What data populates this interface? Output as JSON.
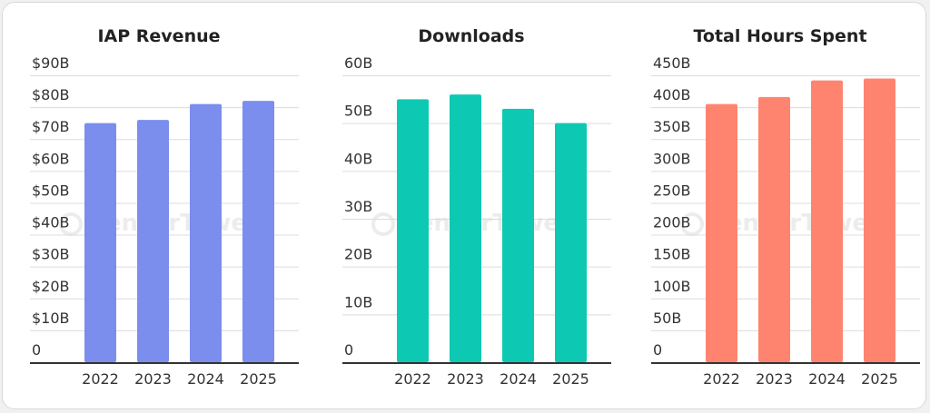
{
  "chart_data": [
    {
      "type": "bar",
      "title": "IAP Revenue",
      "categories": [
        "2022",
        "2023",
        "2024",
        "2025"
      ],
      "values": [
        75,
        76,
        81,
        82
      ],
      "ylim": [
        0,
        90
      ],
      "yticks": [
        "0",
        "$10B",
        "$20B",
        "$30B",
        "$40B",
        "$50B",
        "$60B",
        "$70B",
        "$80B",
        "$90B"
      ],
      "color": "#7b8ded",
      "grid": true
    },
    {
      "type": "bar",
      "title": "Downloads",
      "categories": [
        "2022",
        "2023",
        "2024",
        "2025"
      ],
      "values": [
        55,
        56,
        53,
        50
      ],
      "ylim": [
        0,
        60
      ],
      "yticks": [
        "0",
        "10B",
        "20B",
        "30B",
        "40B",
        "50B",
        "60B"
      ],
      "color": "#0dc9b3",
      "grid": true
    },
    {
      "type": "bar",
      "title": "Total Hours Spent",
      "categories": [
        "2022",
        "2023",
        "2024",
        "2025"
      ],
      "values": [
        405,
        416,
        442,
        445
      ],
      "ylim": [
        0,
        450
      ],
      "yticks": [
        "0",
        "50B",
        "100B",
        "150B",
        "200B",
        "250B",
        "300B",
        "350B",
        "400B",
        "450B"
      ],
      "color": "#ff8470",
      "grid": true
    }
  ],
  "watermark": {
    "text": "SensorTower",
    "icon": "sensor-tower-logo-icon"
  }
}
